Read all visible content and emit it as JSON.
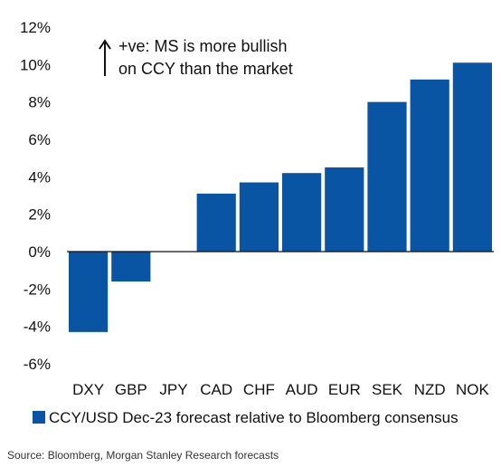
{
  "chart_data": {
    "type": "bar",
    "categories": [
      "DXY",
      "GBP",
      "JPY",
      "CAD",
      "CHF",
      "AUD",
      "EUR",
      "SEK",
      "NZD",
      "NOK"
    ],
    "series": [
      {
        "name": "CCY/USD Dec-23 forecast relative to Bloomberg consensus",
        "values": [
          -4.3,
          -1.6,
          0.0,
          3.1,
          3.7,
          4.2,
          4.5,
          8.0,
          9.2,
          10.1
        ],
        "color": "#0a55a3"
      }
    ],
    "ylim": [
      -6,
      12
    ],
    "yticks": [
      "12%",
      "10%",
      "8%",
      "6%",
      "4%",
      "2%",
      "0%",
      "-2%",
      "-4%",
      "-6%"
    ],
    "annotation": {
      "arrow": "up-arrow",
      "line1": "+ve: MS is more bullish",
      "line2": "on CCY than the market"
    },
    "legend_position": "bottom",
    "grid": false
  },
  "source_text": "Source: Bloomberg, Morgan Stanley Research forecasts"
}
